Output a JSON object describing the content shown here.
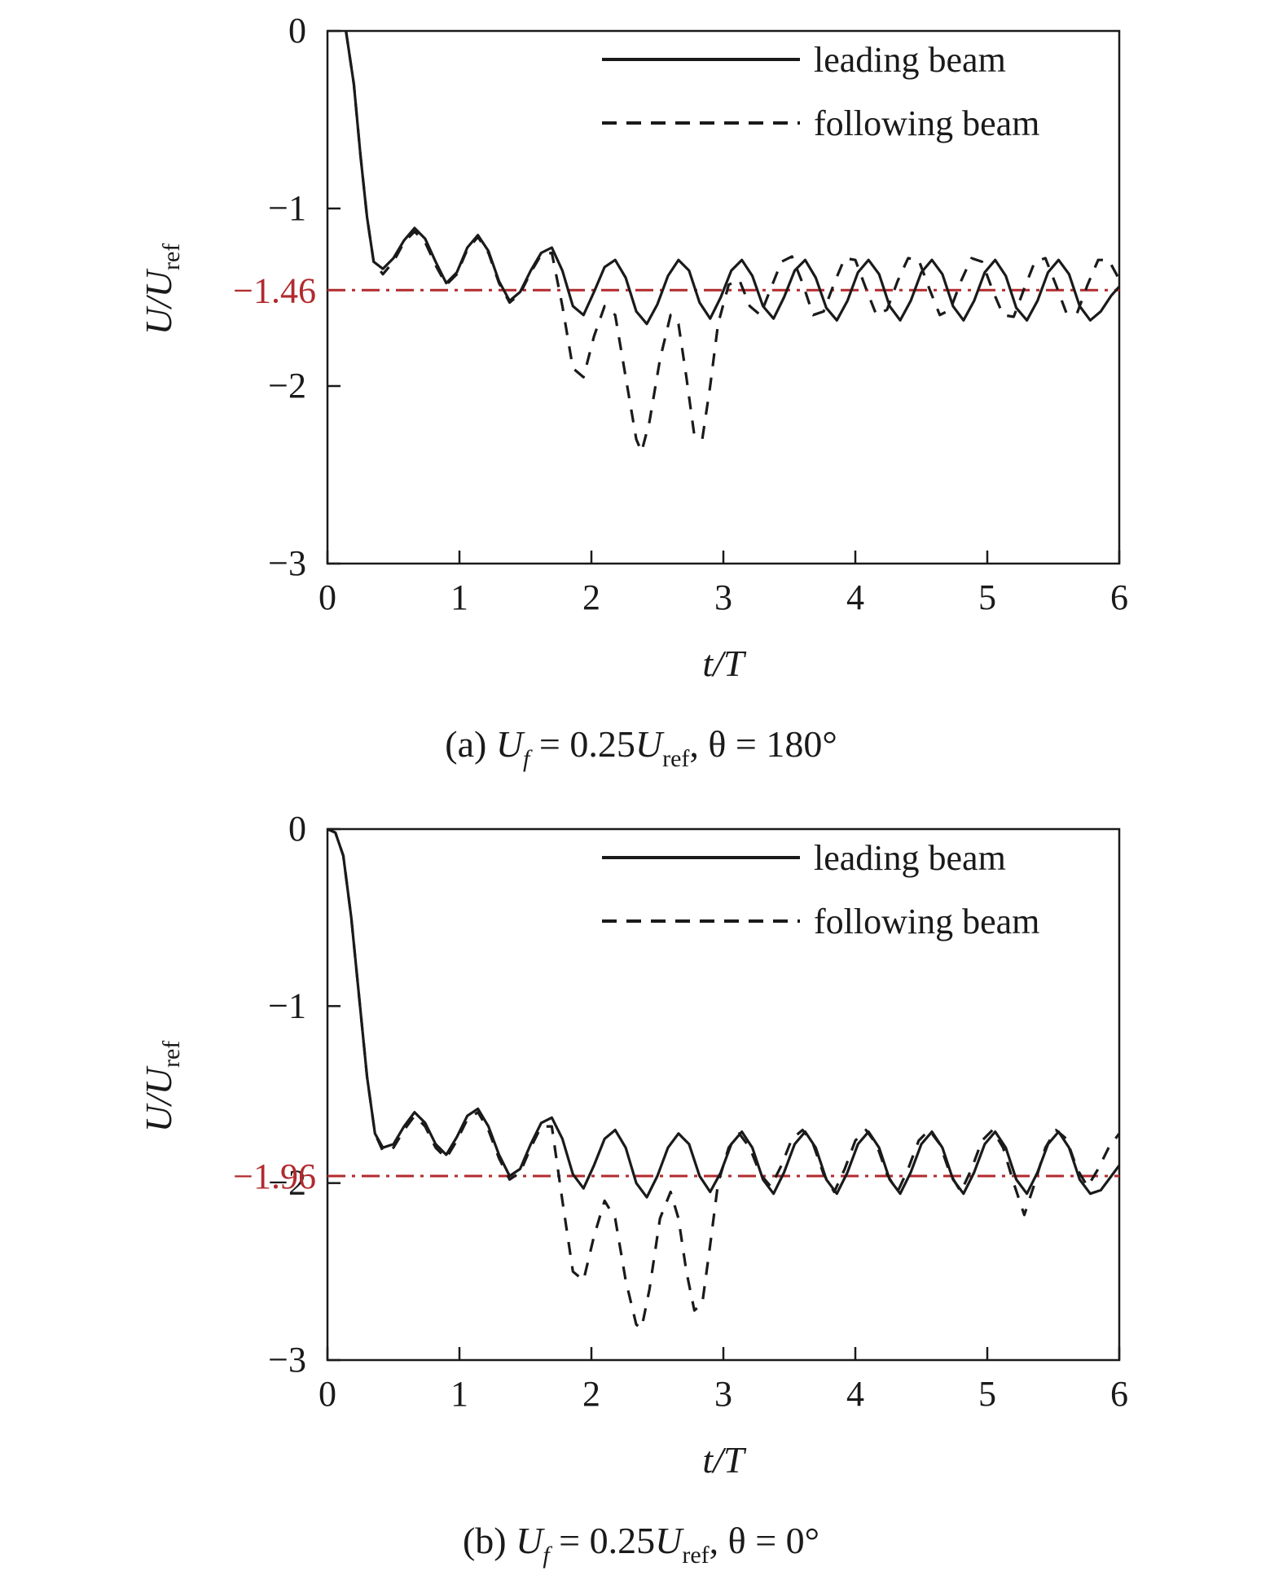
{
  "chart_data": [
    {
      "type": "line",
      "panel": "a",
      "caption": {
        "prefix": "(a) ",
        "u": "U",
        "u_sub": "f",
        "eq": " = 0.25",
        "u2": "U",
        "u2_sub": "ref",
        "rest": ", θ = 180°"
      },
      "xlabel": {
        "main": "t/T"
      },
      "ylabel": {
        "main": "U/U",
        "sub": "ref"
      },
      "xlim": [
        0,
        6
      ],
      "ylim": [
        -3,
        0
      ],
      "xticks": [
        0,
        1,
        2,
        3,
        4,
        5,
        6
      ],
      "xtick_labels": [
        "0",
        "1",
        "2",
        "3",
        "4",
        "5",
        "6"
      ],
      "yticks": [
        0,
        -1,
        -2,
        -3
      ],
      "ytick_labels": [
        "0",
        "−1",
        "−2",
        "−3"
      ],
      "reference_line": {
        "value": -1.46,
        "label": "−1.46",
        "color": "#b22a2e"
      },
      "legend_position": "top-right",
      "series": [
        {
          "name": "leading beam",
          "style": "solid",
          "color": "#1a1a1a",
          "x": [
            0.14,
            0.2,
            0.25,
            0.3,
            0.35,
            0.42,
            0.5,
            0.58,
            0.66,
            0.74,
            0.82,
            0.9,
            0.98,
            1.06,
            1.14,
            1.22,
            1.3,
            1.38,
            1.46,
            1.54,
            1.62,
            1.7,
            1.78,
            1.86,
            1.94,
            2.02,
            2.1,
            2.18,
            2.26,
            2.34,
            2.42,
            2.5,
            2.58,
            2.66,
            2.74,
            2.82,
            2.9,
            2.98,
            3.06,
            3.14,
            3.22,
            3.3,
            3.38,
            3.46,
            3.54,
            3.62,
            3.7,
            3.78,
            3.86,
            3.94,
            4.02,
            4.1,
            4.18,
            4.26,
            4.34,
            4.42,
            4.5,
            4.58,
            4.66,
            4.74,
            4.82,
            4.9,
            4.98,
            5.06,
            5.14,
            5.22,
            5.3,
            5.38,
            5.46,
            5.54,
            5.62,
            5.7,
            5.78,
            5.86,
            5.94,
            6.0
          ],
          "values": [
            0,
            -0.3,
            -0.7,
            -1.05,
            -1.3,
            -1.34,
            -1.28,
            -1.18,
            -1.11,
            -1.17,
            -1.3,
            -1.42,
            -1.36,
            -1.22,
            -1.15,
            -1.24,
            -1.41,
            -1.52,
            -1.47,
            -1.35,
            -1.25,
            -1.22,
            -1.35,
            -1.55,
            -1.6,
            -1.47,
            -1.33,
            -1.29,
            -1.39,
            -1.58,
            -1.65,
            -1.54,
            -1.38,
            -1.29,
            -1.35,
            -1.53,
            -1.62,
            -1.5,
            -1.35,
            -1.29,
            -1.38,
            -1.55,
            -1.62,
            -1.5,
            -1.35,
            -1.29,
            -1.39,
            -1.56,
            -1.63,
            -1.52,
            -1.36,
            -1.29,
            -1.37,
            -1.55,
            -1.63,
            -1.52,
            -1.36,
            -1.29,
            -1.37,
            -1.55,
            -1.63,
            -1.52,
            -1.36,
            -1.29,
            -1.38,
            -1.56,
            -1.63,
            -1.52,
            -1.36,
            -1.29,
            -1.37,
            -1.55,
            -1.63,
            -1.58,
            -1.49,
            -1.44
          ]
        },
        {
          "name": "following beam",
          "style": "dashed",
          "color": "#1a1a1a",
          "x": [
            0.14,
            0.2,
            0.25,
            0.3,
            0.35,
            0.42,
            0.5,
            0.58,
            0.66,
            0.74,
            0.82,
            0.9,
            0.98,
            1.06,
            1.14,
            1.22,
            1.3,
            1.38,
            1.46,
            1.54,
            1.62,
            1.7,
            1.78,
            1.86,
            1.94,
            2.02,
            2.1,
            2.18,
            2.26,
            2.34,
            2.38,
            2.44,
            2.52,
            2.6,
            2.66,
            2.72,
            2.78,
            2.84,
            2.9,
            2.96,
            3.04,
            3.12,
            3.2,
            3.28,
            3.36,
            3.44,
            3.52,
            3.6,
            3.68,
            3.76,
            3.84,
            3.92,
            4.0,
            4.08,
            4.16,
            4.24,
            4.32,
            4.4,
            4.48,
            4.56,
            4.64,
            4.72,
            4.8,
            4.88,
            4.96,
            5.04,
            5.12,
            5.2,
            5.28,
            5.36,
            5.44,
            5.52,
            5.6,
            5.68,
            5.76,
            5.84,
            5.92,
            6.0
          ],
          "values": [
            0,
            -0.3,
            -0.7,
            -1.05,
            -1.3,
            -1.37,
            -1.3,
            -1.19,
            -1.13,
            -1.19,
            -1.32,
            -1.43,
            -1.37,
            -1.23,
            -1.16,
            -1.25,
            -1.42,
            -1.53,
            -1.48,
            -1.36,
            -1.26,
            -1.25,
            -1.55,
            -1.9,
            -1.95,
            -1.72,
            -1.55,
            -1.6,
            -1.95,
            -2.3,
            -2.37,
            -2.2,
            -1.85,
            -1.6,
            -1.65,
            -1.95,
            -2.28,
            -2.3,
            -2.0,
            -1.65,
            -1.43,
            -1.4,
            -1.55,
            -1.6,
            -1.45,
            -1.3,
            -1.27,
            -1.42,
            -1.6,
            -1.58,
            -1.42,
            -1.28,
            -1.29,
            -1.45,
            -1.6,
            -1.57,
            -1.41,
            -1.28,
            -1.29,
            -1.45,
            -1.6,
            -1.57,
            -1.41,
            -1.28,
            -1.3,
            -1.46,
            -1.6,
            -1.61,
            -1.45,
            -1.3,
            -1.28,
            -1.43,
            -1.59,
            -1.59,
            -1.43,
            -1.29,
            -1.29,
            -1.4
          ]
        }
      ]
    },
    {
      "type": "line",
      "panel": "b",
      "caption": {
        "prefix": "(b) ",
        "u": "U",
        "u_sub": "f",
        "eq": " = 0.25",
        "u2": "U",
        "u2_sub": "ref",
        "rest": ", θ = 0°"
      },
      "xlabel": {
        "main": "t/T"
      },
      "ylabel": {
        "main": "U/U",
        "sub": "ref"
      },
      "xlim": [
        0,
        6
      ],
      "ylim": [
        -3,
        0
      ],
      "xticks": [
        0,
        1,
        2,
        3,
        4,
        5,
        6
      ],
      "xtick_labels": [
        "0",
        "1",
        "2",
        "3",
        "4",
        "5",
        "6"
      ],
      "yticks": [
        0,
        -1,
        -2,
        -3
      ],
      "ytick_labels": [
        "0",
        "−1",
        "−2",
        "−3"
      ],
      "reference_line": {
        "value": -1.96,
        "label": "−1.96",
        "color": "#b22a2e"
      },
      "legend_position": "top-right",
      "series": [
        {
          "name": "leading beam",
          "style": "solid",
          "color": "#1a1a1a",
          "x": [
            0.0,
            0.06,
            0.12,
            0.18,
            0.24,
            0.3,
            0.36,
            0.42,
            0.5,
            0.58,
            0.66,
            0.74,
            0.82,
            0.9,
            0.98,
            1.06,
            1.14,
            1.22,
            1.3,
            1.38,
            1.46,
            1.54,
            1.62,
            1.7,
            1.78,
            1.86,
            1.94,
            2.02,
            2.1,
            2.18,
            2.26,
            2.34,
            2.42,
            2.5,
            2.58,
            2.66,
            2.74,
            2.82,
            2.9,
            2.98,
            3.06,
            3.14,
            3.22,
            3.3,
            3.38,
            3.46,
            3.54,
            3.62,
            3.7,
            3.78,
            3.86,
            3.94,
            4.02,
            4.1,
            4.18,
            4.26,
            4.34,
            4.42,
            4.5,
            4.58,
            4.66,
            4.74,
            4.82,
            4.9,
            4.98,
            5.06,
            5.14,
            5.22,
            5.3,
            5.38,
            5.46,
            5.54,
            5.62,
            5.7,
            5.78,
            5.86,
            5.94,
            6.0
          ],
          "values": [
            0,
            -0.02,
            -0.15,
            -0.5,
            -0.95,
            -1.4,
            -1.72,
            -1.8,
            -1.78,
            -1.68,
            -1.6,
            -1.66,
            -1.78,
            -1.84,
            -1.74,
            -1.62,
            -1.58,
            -1.68,
            -1.84,
            -1.96,
            -1.92,
            -1.78,
            -1.66,
            -1.63,
            -1.75,
            -1.95,
            -2.03,
            -1.9,
            -1.75,
            -1.7,
            -1.8,
            -2.0,
            -2.08,
            -1.96,
            -1.8,
            -1.72,
            -1.78,
            -1.96,
            -2.05,
            -1.94,
            -1.78,
            -1.71,
            -1.8,
            -1.98,
            -2.06,
            -1.94,
            -1.78,
            -1.71,
            -1.8,
            -1.98,
            -2.06,
            -1.94,
            -1.78,
            -1.71,
            -1.8,
            -1.98,
            -2.06,
            -1.94,
            -1.78,
            -1.71,
            -1.8,
            -1.98,
            -2.06,
            -1.94,
            -1.78,
            -1.71,
            -1.8,
            -1.98,
            -2.06,
            -1.94,
            -1.78,
            -1.71,
            -1.8,
            -1.98,
            -2.06,
            -2.04,
            -1.96,
            -1.9
          ]
        },
        {
          "name": "following beam",
          "style": "dashed",
          "color": "#1a1a1a",
          "x": [
            0.0,
            0.06,
            0.12,
            0.18,
            0.24,
            0.3,
            0.36,
            0.42,
            0.5,
            0.58,
            0.66,
            0.74,
            0.82,
            0.9,
            0.98,
            1.06,
            1.14,
            1.22,
            1.3,
            1.38,
            1.46,
            1.54,
            1.62,
            1.7,
            1.78,
            1.86,
            1.94,
            2.02,
            2.1,
            2.18,
            2.26,
            2.34,
            2.38,
            2.44,
            2.52,
            2.6,
            2.66,
            2.72,
            2.78,
            2.84,
            2.9,
            2.96,
            3.04,
            3.12,
            3.2,
            3.28,
            3.36,
            3.44,
            3.52,
            3.6,
            3.68,
            3.76,
            3.84,
            3.92,
            4.0,
            4.08,
            4.16,
            4.24,
            4.32,
            4.4,
            4.48,
            4.56,
            4.64,
            4.72,
            4.8,
            4.88,
            4.96,
            5.04,
            5.12,
            5.2,
            5.28,
            5.36,
            5.44,
            5.52,
            5.6,
            5.68,
            5.76,
            5.84,
            5.92,
            6.0
          ],
          "values": [
            0,
            -0.02,
            -0.15,
            -0.5,
            -0.95,
            -1.4,
            -1.72,
            -1.82,
            -1.8,
            -1.7,
            -1.62,
            -1.68,
            -1.8,
            -1.86,
            -1.76,
            -1.64,
            -1.6,
            -1.7,
            -1.86,
            -1.98,
            -1.94,
            -1.8,
            -1.68,
            -1.68,
            -2.1,
            -2.5,
            -2.55,
            -2.3,
            -2.1,
            -2.2,
            -2.55,
            -2.8,
            -2.82,
            -2.6,
            -2.2,
            -2.05,
            -2.2,
            -2.5,
            -2.72,
            -2.68,
            -2.35,
            -2.0,
            -1.8,
            -1.72,
            -1.8,
            -1.95,
            -2.02,
            -1.9,
            -1.75,
            -1.7,
            -1.78,
            -1.95,
            -2.05,
            -1.92,
            -1.76,
            -1.7,
            -1.78,
            -1.95,
            -2.05,
            -1.92,
            -1.76,
            -1.7,
            -1.78,
            -1.95,
            -2.05,
            -1.92,
            -1.76,
            -1.7,
            -1.8,
            -2.0,
            -2.18,
            -2.0,
            -1.8,
            -1.7,
            -1.75,
            -1.92,
            -2.02,
            -1.92,
            -1.8,
            -1.72
          ]
        }
      ]
    }
  ]
}
